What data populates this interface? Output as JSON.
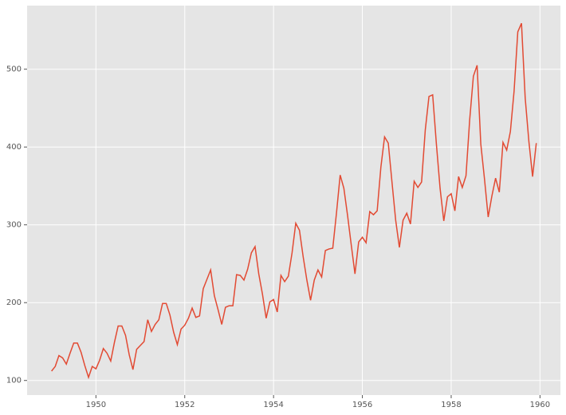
{
  "chart_data": {
    "type": "line",
    "x": [
      "1949-01",
      "1949-02",
      "1949-03",
      "1949-04",
      "1949-05",
      "1949-06",
      "1949-07",
      "1949-08",
      "1949-09",
      "1949-10",
      "1949-11",
      "1949-12",
      "1950-01",
      "1950-02",
      "1950-03",
      "1950-04",
      "1950-05",
      "1950-06",
      "1950-07",
      "1950-08",
      "1950-09",
      "1950-10",
      "1950-11",
      "1950-12",
      "1951-01",
      "1951-02",
      "1951-03",
      "1951-04",
      "1951-05",
      "1951-06",
      "1951-07",
      "1951-08",
      "1951-09",
      "1951-10",
      "1951-11",
      "1951-12",
      "1952-01",
      "1952-02",
      "1952-03",
      "1952-04",
      "1952-05",
      "1952-06",
      "1952-07",
      "1952-08",
      "1952-09",
      "1952-10",
      "1952-11",
      "1952-12",
      "1953-01",
      "1953-02",
      "1953-03",
      "1953-04",
      "1953-05",
      "1953-06",
      "1953-07",
      "1953-08",
      "1953-09",
      "1953-10",
      "1953-11",
      "1953-12",
      "1954-01",
      "1954-02",
      "1954-03",
      "1954-04",
      "1954-05",
      "1954-06",
      "1954-07",
      "1954-08",
      "1954-09",
      "1954-10",
      "1954-11",
      "1954-12",
      "1955-01",
      "1955-02",
      "1955-03",
      "1955-04",
      "1955-05",
      "1955-06",
      "1955-07",
      "1955-08",
      "1955-09",
      "1955-10",
      "1955-11",
      "1955-12",
      "1956-01",
      "1956-02",
      "1956-03",
      "1956-04",
      "1956-05",
      "1956-06",
      "1956-07",
      "1956-08",
      "1956-09",
      "1956-10",
      "1956-11",
      "1956-12",
      "1957-01",
      "1957-02",
      "1957-03",
      "1957-04",
      "1957-05",
      "1957-06",
      "1957-07",
      "1957-08",
      "1957-09",
      "1957-10",
      "1957-11",
      "1957-12",
      "1958-01",
      "1958-02",
      "1958-03",
      "1958-04",
      "1958-05",
      "1958-06",
      "1958-07",
      "1958-08",
      "1958-09",
      "1958-10",
      "1958-11",
      "1958-12",
      "1959-01",
      "1959-02",
      "1959-03",
      "1959-04",
      "1959-05",
      "1959-06",
      "1959-07",
      "1959-08",
      "1959-09",
      "1959-10",
      "1959-11",
      "1959-12"
    ],
    "series": [
      {
        "color": "#e24a33",
        "values": [
          112,
          118,
          132,
          129,
          121,
          135,
          148,
          148,
          136,
          119,
          104,
          118,
          115,
          126,
          141,
          135,
          125,
          149,
          170,
          170,
          158,
          133,
          114,
          140,
          145,
          150,
          178,
          163,
          172,
          178,
          199,
          199,
          184,
          162,
          146,
          166,
          171,
          180,
          193,
          181,
          183,
          218,
          230,
          242,
          209,
          191,
          172,
          194,
          196,
          196,
          236,
          235,
          229,
          243,
          264,
          272,
          237,
          211,
          180,
          201,
          204,
          188,
          235,
          227,
          234,
          264,
          302,
          293,
          259,
          229,
          203,
          229,
          242,
          233,
          267,
          269,
          270,
          315,
          364,
          347,
          312,
          274,
          237,
          278,
          284,
          277,
          317,
          313,
          318,
          374,
          413,
          405,
          355,
          306,
          271,
          306,
          315,
          301,
          356,
          348,
          355,
          422,
          465,
          467,
          404,
          347,
          305,
          336,
          340,
          318,
          362,
          348,
          363,
          435,
          491,
          505,
          404,
          359,
          310,
          337,
          360,
          342,
          406,
          396,
          420,
          472,
          548,
          559,
          463,
          407,
          362,
          405
        ]
      }
    ],
    "xlim": [
      1948.45,
      1960.46
    ],
    "xticks": [
      1950,
      1952,
      1954,
      1956,
      1958,
      1960
    ],
    "ylim": [
      81.25,
      581.75
    ],
    "yticks": [
      100,
      200,
      300,
      400,
      500
    ],
    "grid": true
  }
}
